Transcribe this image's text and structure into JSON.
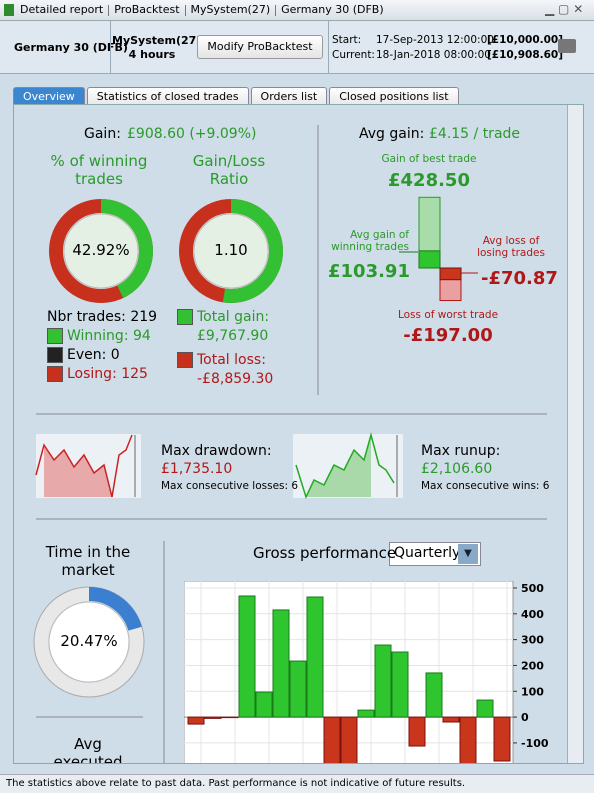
{
  "window": {
    "title_segments": [
      "Detailed report",
      "ProBacktest",
      "MySystem(27)",
      "Germany 30 (DFB)"
    ]
  },
  "header": {
    "instrument": "Germany 30 (DFB)",
    "system": "MySystem(27)",
    "timeframe": "4 hours",
    "button": "Modify ProBacktest",
    "start_label": "Start:",
    "start_date": "17-Sep-2013 12:00:00",
    "start_capital": "[£10,000.00]",
    "current_label": "Current:",
    "current_date": "18-Jan-2018 08:00:00",
    "current_capital": "[£10,908.60]"
  },
  "tabs": [
    "Overview",
    "Statistics of closed trades",
    "Orders list",
    "Closed positions list"
  ],
  "gain": {
    "label": "Gain:",
    "value": "£908.60 (+9.09%)"
  },
  "winning": {
    "title": "% of winning trades",
    "percent": {
      "value": 42.92,
      "label": "42.92%"
    }
  },
  "ratio": {
    "title": "Gain/Loss Ratio",
    "value": "1.10"
  },
  "trades": {
    "count": "Nbr trades: 219",
    "winning": "Winning: 94",
    "even": "Even: 0",
    "losing": "Losing: 125"
  },
  "totals": {
    "gain_label": "Total gain:",
    "gain": {
      "value": 9767.9,
      "label": "£9,767.90"
    },
    "loss_label": "Total loss:",
    "loss": {
      "value": -8859.3,
      "label": "-£8,859.30"
    }
  },
  "avg": {
    "label": "Avg gain:",
    "value": "£4.15 / trade",
    "best_label": "Gain of best trade",
    "best": {
      "value": 428.5,
      "label": "£428.50"
    },
    "avg_win_label": "Avg gain of winning trades",
    "avg_win": {
      "value": 103.91,
      "label": "£103.91"
    },
    "avg_loss_label": "Avg loss of losing trades",
    "avg_loss": {
      "value": -70.87,
      "label": "-£70.87"
    },
    "worst_label": "Loss of worst trade",
    "worst": {
      "value": -197,
      "label": "-£197.00"
    }
  },
  "drawdown": {
    "label": "Max drawdown:",
    "value": "£1,735.10",
    "consecutive": "Max consecutive losses: 6"
  },
  "runup": {
    "label": "Max runup:",
    "value": "£2,106.60",
    "consecutive": "Max consecutive wins: 6"
  },
  "market": {
    "title": "Time in the market",
    "percent": {
      "value": 20.47,
      "label": "20.47%"
    },
    "next_title": "Avg executed"
  },
  "chart_data": {
    "type": "bar",
    "title": "Gross performance",
    "period": "Quarterly",
    "values": [
      -27,
      -5,
      -2,
      469,
      97,
      415,
      217,
      465,
      -180,
      -180,
      27,
      279,
      252,
      -112,
      171,
      -19,
      -180,
      66,
      -170
    ],
    "colors": {
      "positive": "#2ec52e",
      "negative": "#c9361c"
    },
    "ylim": [
      -170,
      527
    ],
    "yticks": [
      -100,
      0,
      100,
      200,
      300,
      400,
      500
    ]
  },
  "footer": "The statistics above relate to past data. Past performance is not indicative of future results."
}
